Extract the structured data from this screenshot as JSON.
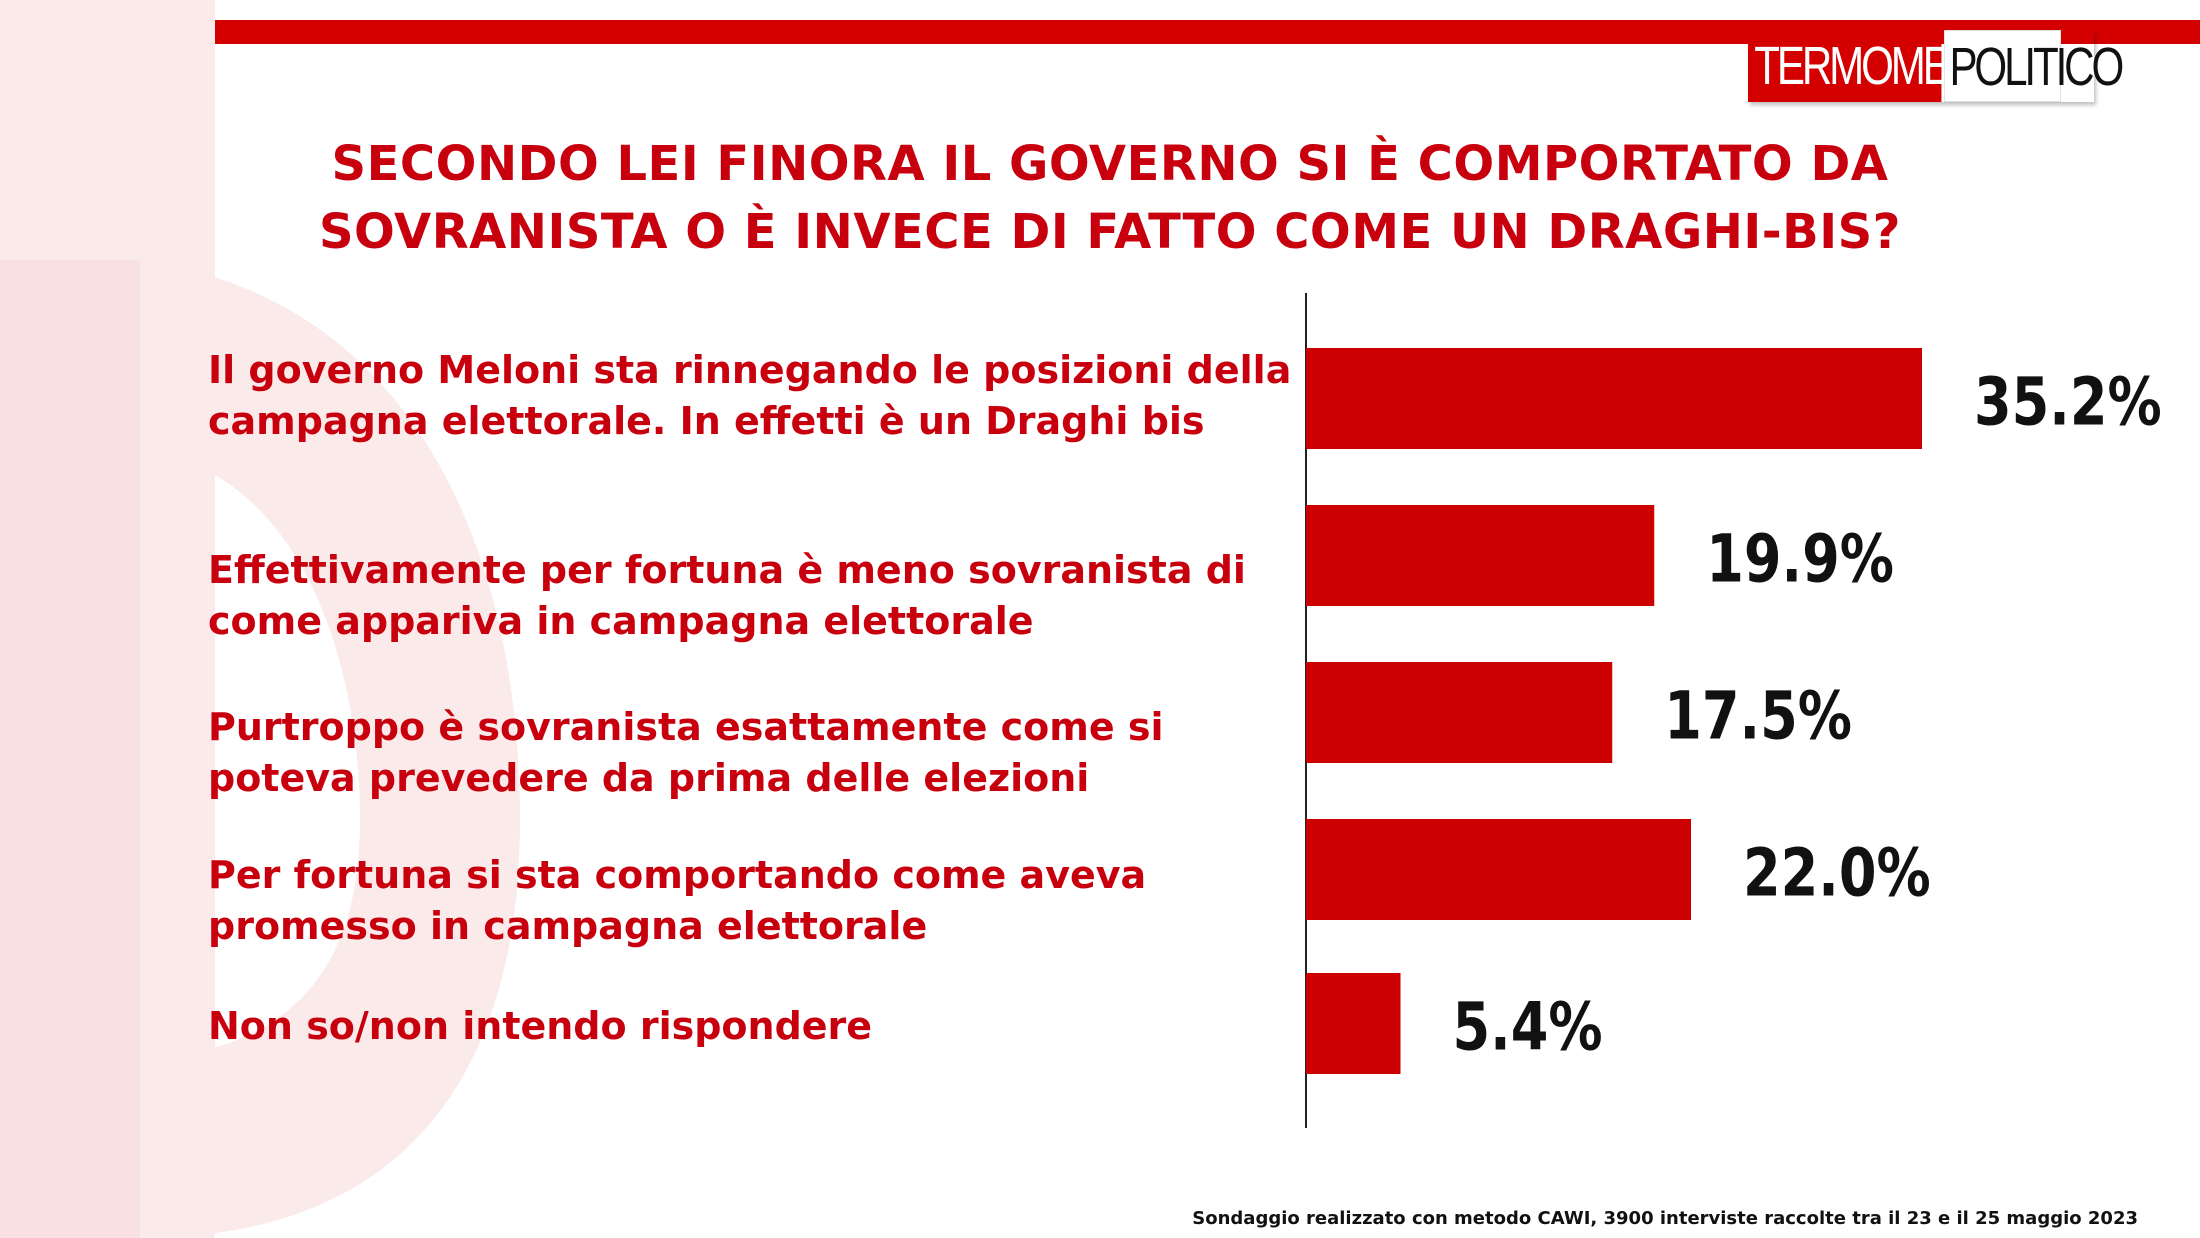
{
  "logo": {
    "part1": "TERMOMETRO",
    "part2": "POLITICO"
  },
  "colors": {
    "accent": "#d40000",
    "bar": "#cc0000",
    "text_red": "#c8000e",
    "value_text": "#111111"
  },
  "chart_data": {
    "type": "bar",
    "orientation": "horizontal",
    "title": "SECONDO LEI FINORA IL GOVERNO SI È COMPORTATO DA SOVRANISTA O È INVECE DI FATTO COME UN DRAGHI-BIS?",
    "categories": [
      "Il governo Meloni sta rinnegando le posizioni della campagna elettorale. In effetti è un Draghi bis",
      "Effettivamente per fortuna è meno sovranista di come appariva in campagna elettorale",
      "Purtroppo è sovranista esattamente come si poteva prevedere da prima delle elezioni",
      "Per fortuna si sta comportando come aveva promesso in campagna elettorale",
      "Non so/non intendo rispondere"
    ],
    "values": [
      35.2,
      19.9,
      17.5,
      22.0,
      5.4
    ],
    "value_labels": [
      "35.2%",
      "19.9%",
      "17.5%",
      "22.0%",
      "5.4%"
    ],
    "unit": "%",
    "grid": false,
    "legend": "none"
  },
  "footnote": "Sondaggio realizzato con metodo CAWI, 3900 interviste raccolte tra il 23 e il 25 maggio 2023"
}
